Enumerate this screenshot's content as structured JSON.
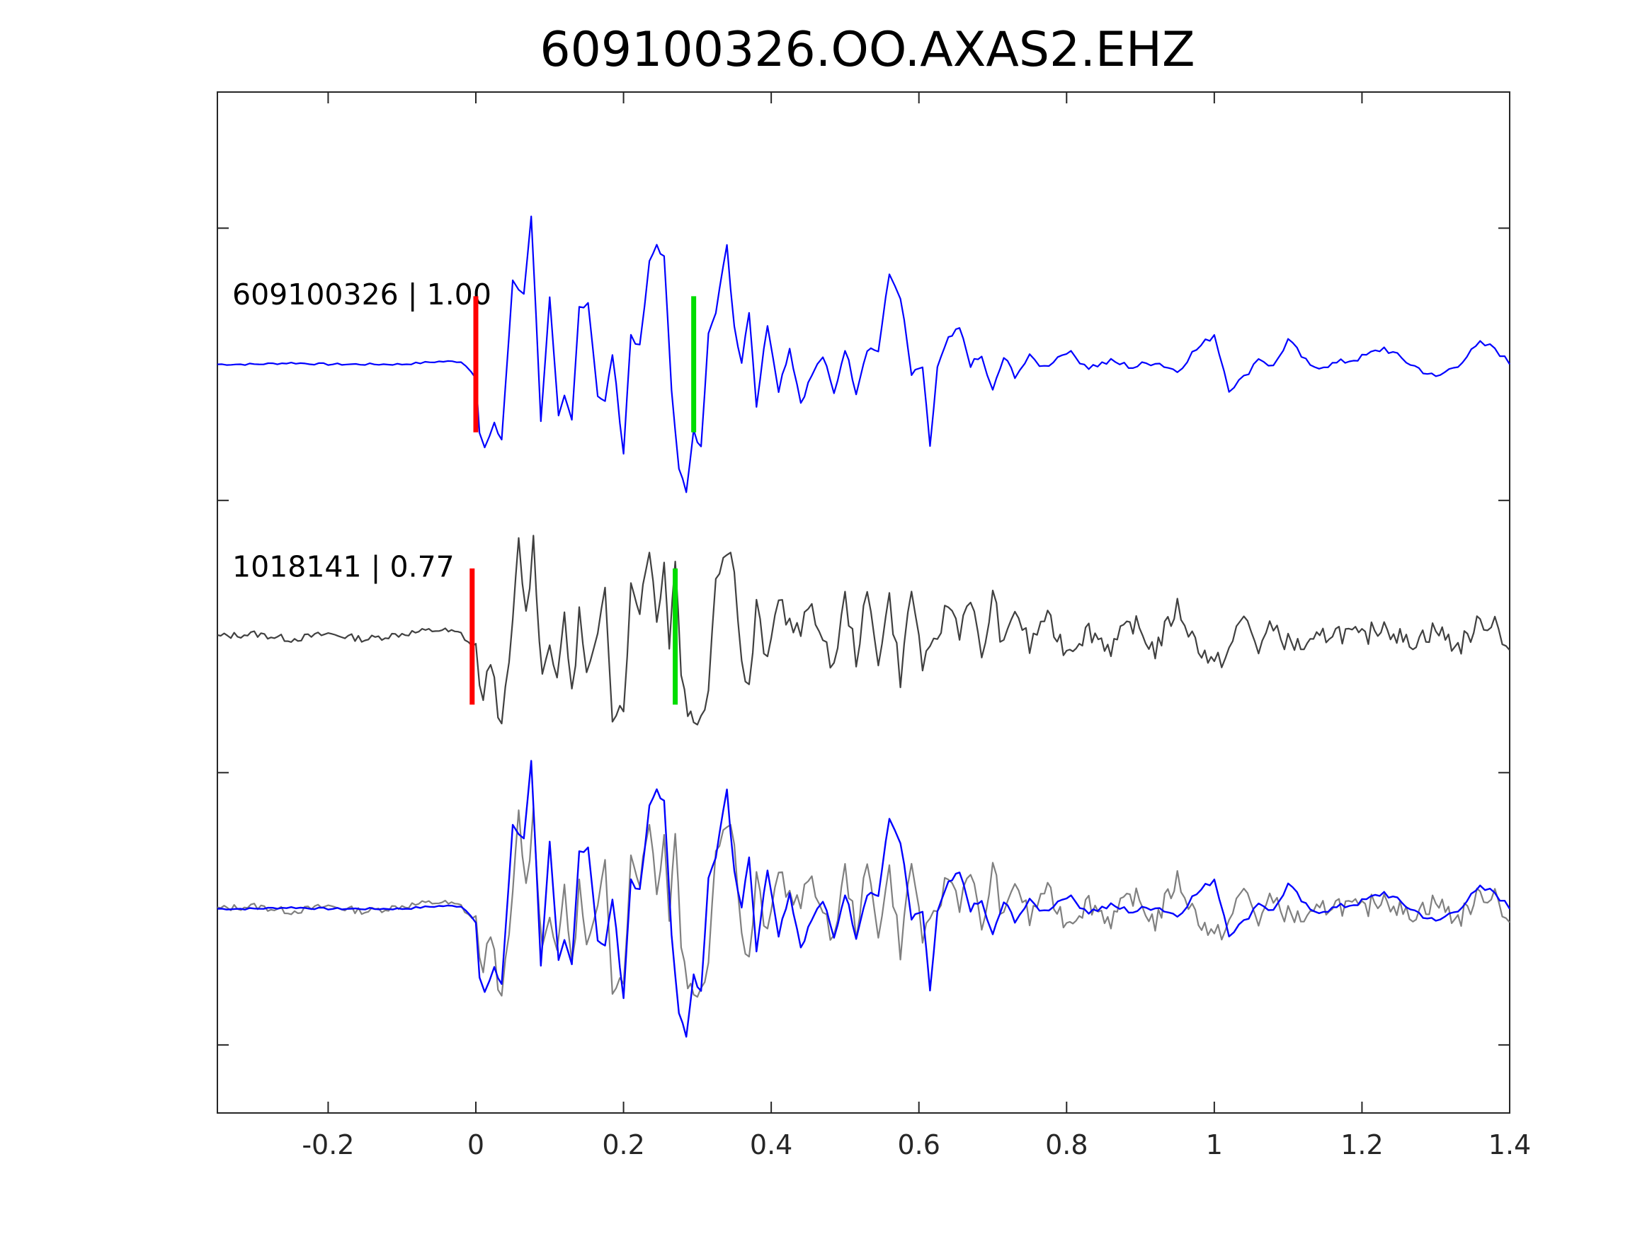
{
  "chart_data": {
    "type": "line",
    "title": "609100326.OO.AXAS2.EHZ",
    "xlabel": "",
    "ylabel": "",
    "xlim": [
      -0.35,
      1.4
    ],
    "ylim": [
      0,
      7.5
    ],
    "grid": false,
    "legend": "none",
    "x_ticks": [
      {
        "value": -0.2,
        "label": "-0.2"
      },
      {
        "value": 0,
        "label": "0"
      },
      {
        "value": 0.2,
        "label": "0.2"
      },
      {
        "value": 0.4,
        "label": "0.4"
      },
      {
        "value": 0.6,
        "label": "0.6"
      },
      {
        "value": 0.8,
        "label": "0.8"
      },
      {
        "value": 1,
        "label": "1"
      },
      {
        "value": 1.2,
        "label": "1.2"
      },
      {
        "value": 1.4,
        "label": "1.4"
      }
    ],
    "y_ticks": [
      0.5,
      2.5,
      4.5,
      6.5
    ],
    "traces": [
      {
        "id": "master",
        "label": "609100326 | 1.00",
        "baseline": 5.5,
        "color": "#0000ff",
        "p_pick": 0.0,
        "s_pick": 0.295,
        "x": [
          -0.35,
          -0.3,
          -0.25,
          -0.2,
          -0.15,
          -0.1,
          -0.05,
          -0.02,
          0.0,
          0.005,
          0.012,
          0.025,
          0.035,
          0.05,
          0.058,
          0.065,
          0.075,
          0.088,
          0.1,
          0.112,
          0.12,
          0.13,
          0.14,
          0.152,
          0.165,
          0.175,
          0.185,
          0.2,
          0.21,
          0.222,
          0.235,
          0.245,
          0.255,
          0.265,
          0.275,
          0.285,
          0.295,
          0.305,
          0.315,
          0.325,
          0.34,
          0.35,
          0.36,
          0.37,
          0.38,
          0.395,
          0.41,
          0.425,
          0.44,
          0.455,
          0.47,
          0.485,
          0.5,
          0.515,
          0.53,
          0.545,
          0.56,
          0.575,
          0.59,
          0.605,
          0.615,
          0.625,
          0.64,
          0.655,
          0.67,
          0.685,
          0.7,
          0.715,
          0.73,
          0.75,
          0.77,
          0.8,
          0.83,
          0.86,
          0.89,
          0.92,
          0.95,
          0.97,
          1.0,
          1.02,
          1.04,
          1.06,
          1.08,
          1.1,
          1.13,
          1.16,
          1.2,
          1.23,
          1.26,
          1.3,
          1.33,
          1.36,
          1.38,
          1.4
        ],
        "y": [
          5.5,
          5.5,
          5.51,
          5.5,
          5.5,
          5.5,
          5.52,
          5.52,
          5.42,
          5.0,
          4.88,
          5.05,
          4.95,
          6.1,
          6.05,
          6.02,
          6.6,
          5.1,
          5.98,
          5.1,
          5.25,
          5.08,
          5.92,
          5.96,
          5.28,
          5.22,
          5.58,
          4.85,
          5.72,
          5.62,
          6.24,
          6.38,
          6.28,
          5.32,
          4.75,
          4.55,
          5.0,
          4.88,
          5.75,
          5.9,
          6.36,
          5.78,
          5.52,
          5.9,
          5.2,
          5.8,
          5.32,
          5.62,
          5.22,
          5.42,
          5.56,
          5.28,
          5.62,
          5.3,
          5.62,
          5.6,
          6.16,
          6.0,
          5.42,
          5.48,
          4.88,
          5.48,
          5.68,
          5.76,
          5.5,
          5.55,
          5.3,
          5.55,
          5.42,
          5.55,
          5.48,
          5.6,
          5.48,
          5.52,
          5.48,
          5.52,
          5.45,
          5.58,
          5.72,
          5.32,
          5.4,
          5.55,
          5.48,
          5.68,
          5.48,
          5.5,
          5.55,
          5.62,
          5.52,
          5.4,
          5.5,
          5.65,
          5.62,
          5.5
        ]
      },
      {
        "id": "template",
        "label": "1018141 | 0.77",
        "baseline": 3.5,
        "color": "#404040",
        "p_pick": -0.005,
        "s_pick": 0.27,
        "x": [
          -0.35,
          -0.3,
          -0.25,
          -0.2,
          -0.15,
          -0.1,
          -0.05,
          -0.02,
          0.0,
          0.01,
          0.02,
          0.035,
          0.05,
          0.058,
          0.068,
          0.078,
          0.09,
          0.1,
          0.11,
          0.12,
          0.13,
          0.14,
          0.15,
          0.165,
          0.175,
          0.185,
          0.2,
          0.21,
          0.222,
          0.235,
          0.245,
          0.255,
          0.262,
          0.27,
          0.278,
          0.287,
          0.295,
          0.305,
          0.315,
          0.325,
          0.34,
          0.35,
          0.36,
          0.37,
          0.38,
          0.395,
          0.41,
          0.425,
          0.44,
          0.455,
          0.47,
          0.485,
          0.5,
          0.515,
          0.53,
          0.545,
          0.56,
          0.575,
          0.59,
          0.605,
          0.615,
          0.625,
          0.64,
          0.655,
          0.67,
          0.685,
          0.7,
          0.715,
          0.73,
          0.75,
          0.77,
          0.8,
          0.83,
          0.86,
          0.89,
          0.92,
          0.95,
          0.97,
          1.0,
          1.02,
          1.04,
          1.06,
          1.08,
          1.1,
          1.13,
          1.16,
          1.2,
          1.23,
          1.26,
          1.3,
          1.33,
          1.36,
          1.38,
          1.4
        ],
        "y": [
          3.5,
          3.52,
          3.48,
          3.52,
          3.48,
          3.52,
          3.55,
          3.52,
          3.4,
          3.0,
          3.35,
          2.8,
          3.58,
          4.2,
          3.65,
          4.2,
          3.2,
          3.5,
          3.12,
          3.7,
          3.05,
          3.68,
          3.2,
          3.45,
          3.9,
          2.95,
          3.0,
          3.85,
          3.72,
          4.18,
          3.6,
          4.1,
          3.42,
          4.1,
          3.25,
          2.98,
          2.85,
          2.95,
          3.12,
          3.98,
          4.12,
          4.05,
          3.3,
          3.1,
          3.72,
          3.28,
          3.82,
          3.58,
          3.52,
          3.78,
          3.42,
          3.3,
          3.78,
          3.35,
          3.8,
          3.35,
          3.78,
          3.2,
          3.85,
          3.3,
          3.35,
          3.5,
          3.75,
          3.55,
          3.82,
          3.3,
          3.82,
          3.4,
          3.72,
          3.42,
          3.65,
          3.4,
          3.55,
          3.42,
          3.6,
          3.4,
          3.72,
          3.5,
          3.28,
          3.4,
          3.65,
          3.42,
          3.58,
          3.45,
          3.42,
          3.55,
          3.48,
          3.6,
          3.45,
          3.55,
          3.42,
          3.6,
          3.62,
          3.4
        ]
      }
    ],
    "overlay": {
      "baseline": 1.5,
      "colors": [
        "#808080",
        "#0000ff"
      ],
      "description_series": [
        "template",
        "master"
      ]
    },
    "pick_colors": {
      "p": "#ff0000",
      "s": "#00dd00"
    }
  }
}
